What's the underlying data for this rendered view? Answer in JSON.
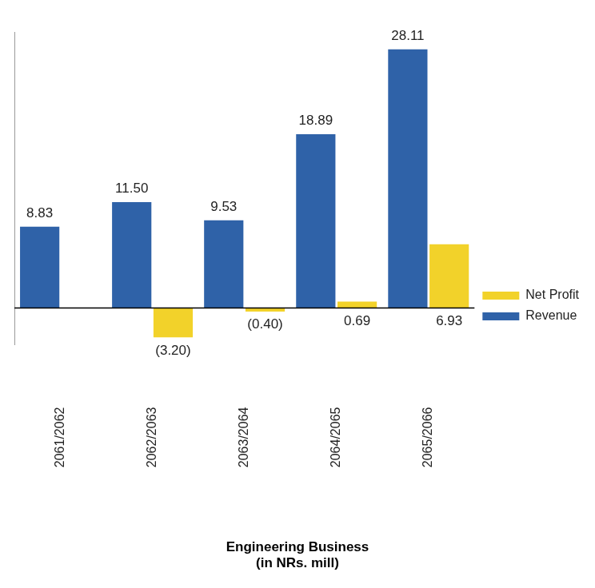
{
  "chart_data": {
    "type": "bar",
    "title": "Engineering Business",
    "subtitle": "(in NRs. mill)",
    "categories": [
      "2061/2062",
      "2062/2063",
      "2063/2064",
      "2064/2065",
      "2065/2066"
    ],
    "series": [
      {
        "name": "Revenue",
        "color": "#2f62a8",
        "values": [
          8.83,
          11.5,
          9.53,
          18.89,
          28.11
        ],
        "value_labels": [
          "8.83",
          "11.50",
          "9.53",
          "18.89",
          "28.11"
        ]
      },
      {
        "name": "Net Profit",
        "color": "#f2d22a",
        "values": [
          null,
          -3.2,
          -0.4,
          0.69,
          6.93
        ],
        "value_labels": [
          null,
          "(3.20)",
          "(0.40)",
          "0.69",
          "6.93"
        ]
      }
    ],
    "ylim": [
      -4,
      30
    ],
    "grid": false,
    "legend": "right",
    "data_labels": true,
    "tick_labels": "x"
  }
}
